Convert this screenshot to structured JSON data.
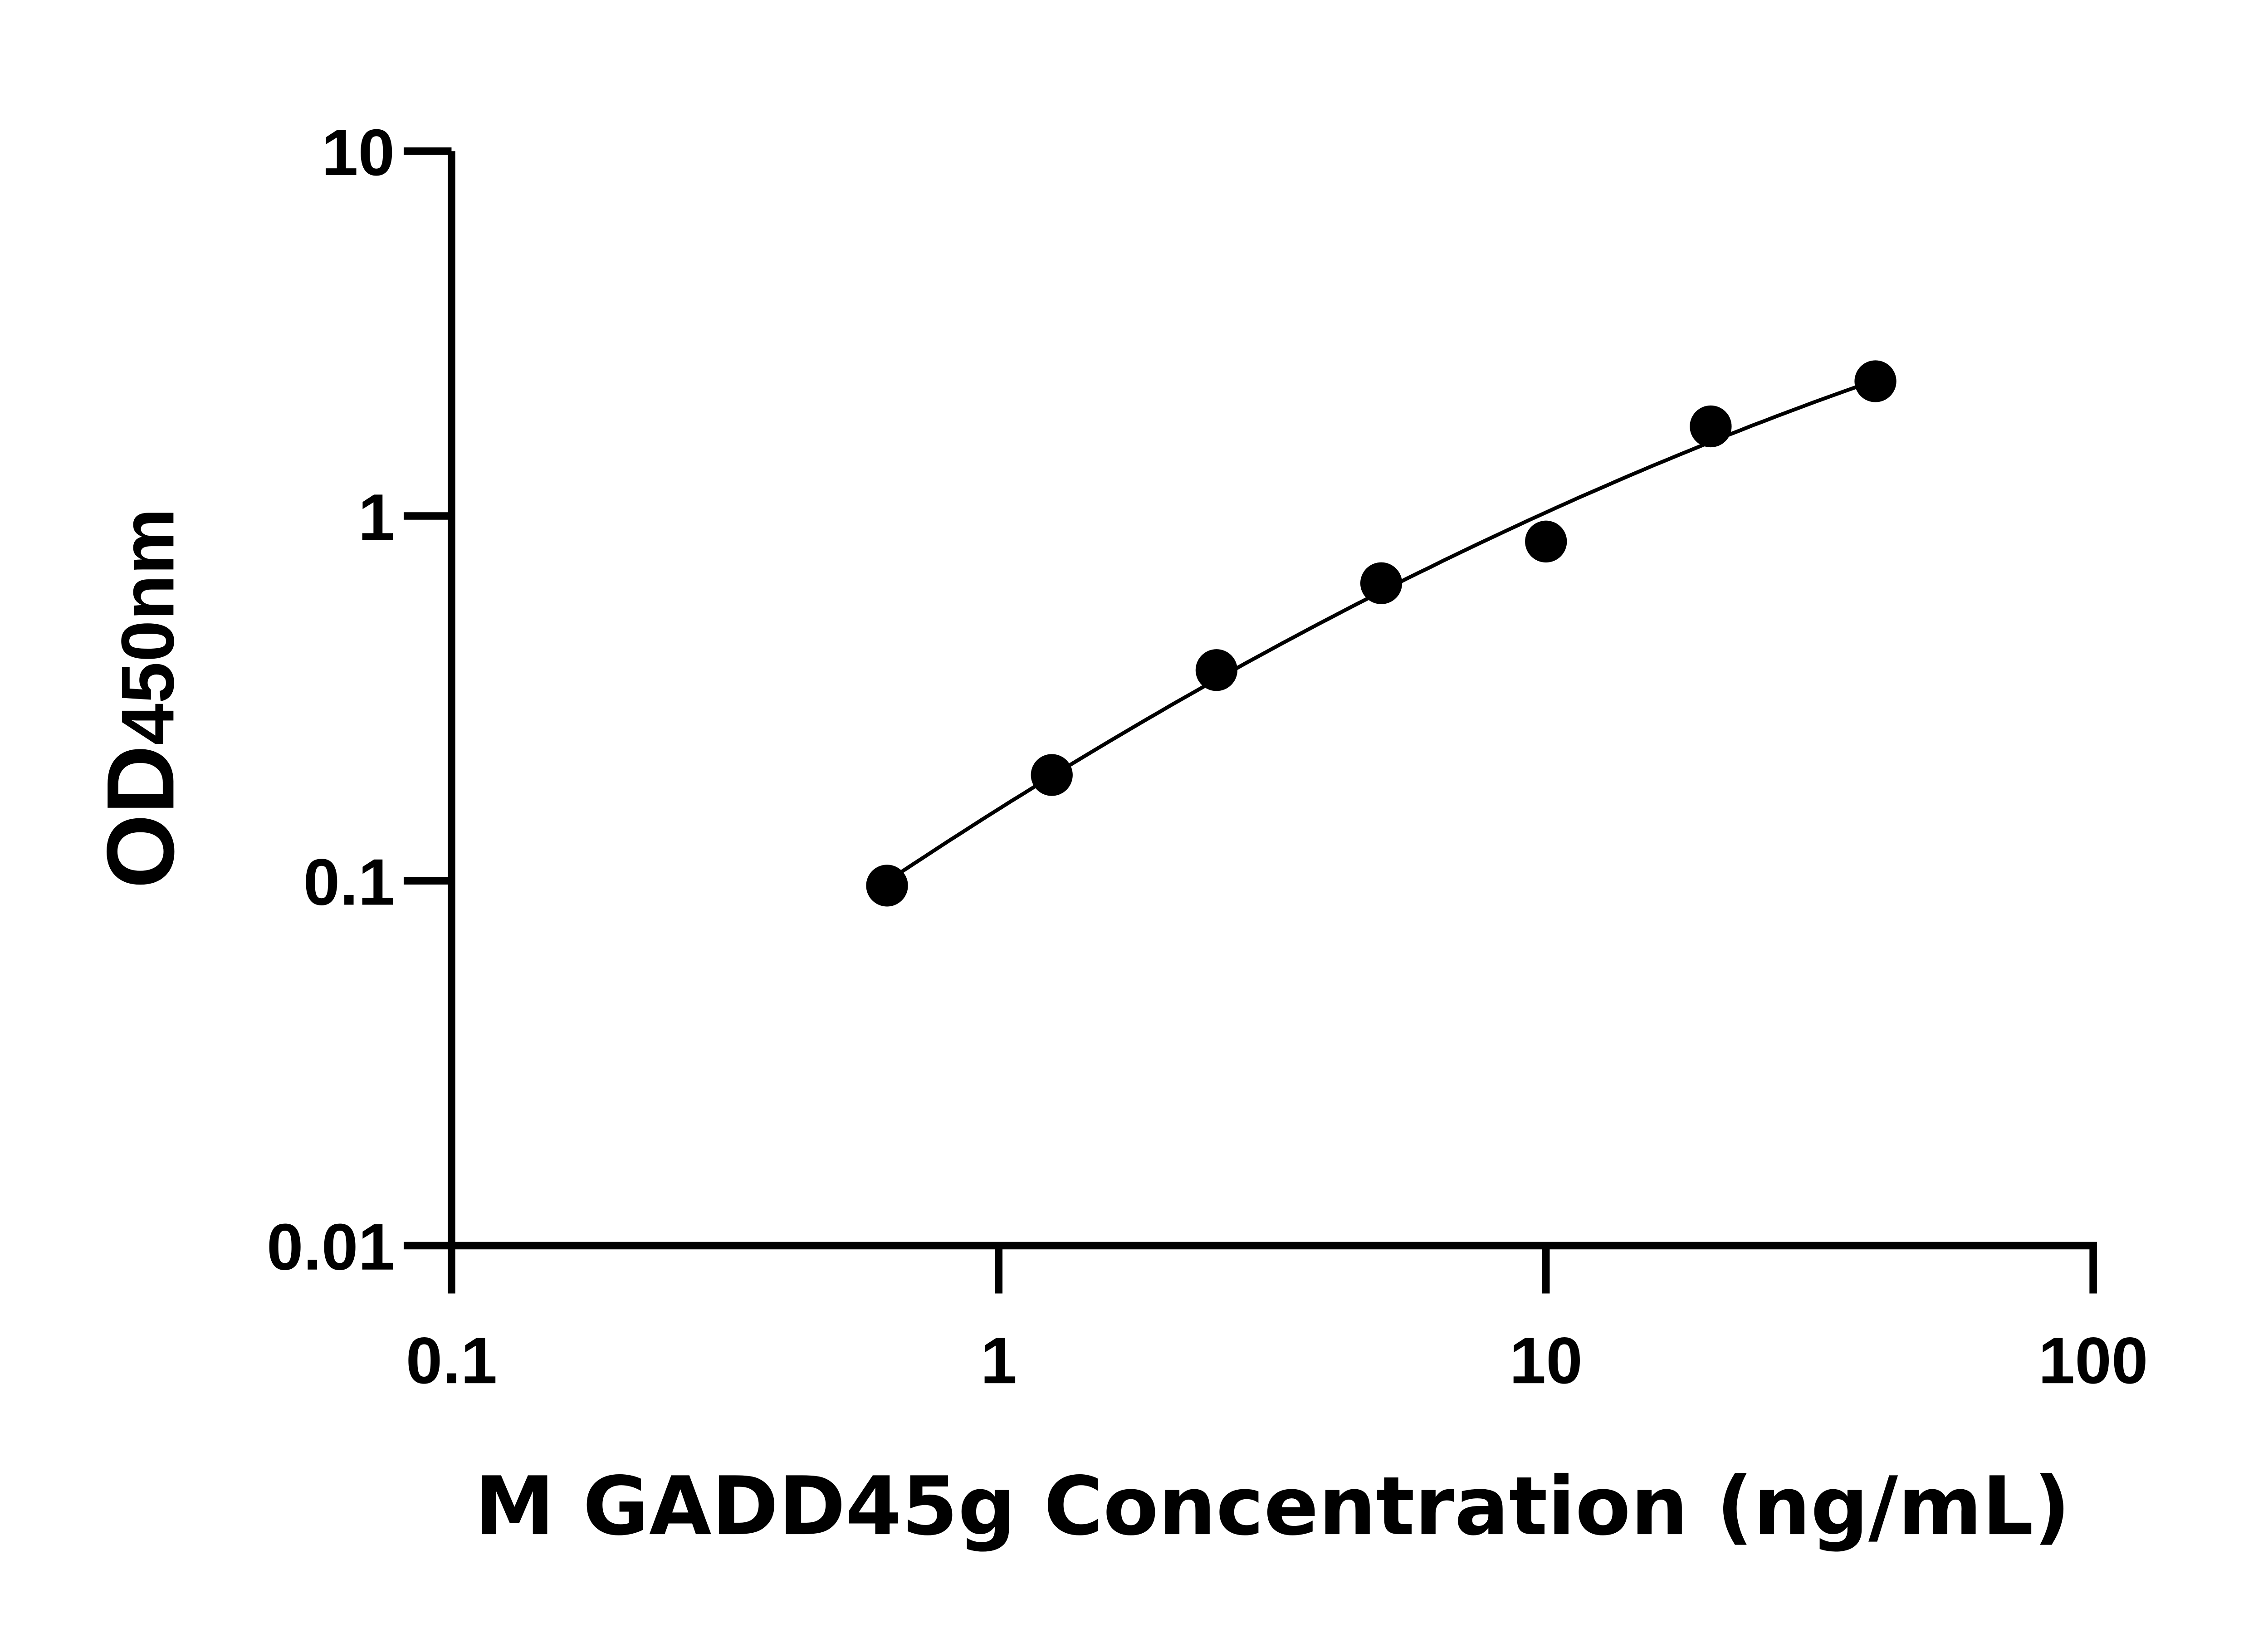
{
  "chart_data": {
    "type": "scatter",
    "title": "",
    "xlabel": "M GADD45g Concentration (ng/mL)",
    "ylabel_main": "OD",
    "ylabel_sub": "450nm",
    "xscale": "log",
    "yscale": "log",
    "xlim": [
      0.1,
      100
    ],
    "ylim": [
      0.01,
      10
    ],
    "xticks": [
      "0.1",
      "1",
      "10",
      "100"
    ],
    "yticks": [
      "0.01",
      "0.1",
      "1",
      "10"
    ],
    "grid": false,
    "legend": "none",
    "fit_curve": true,
    "colors": {
      "points": "#000000",
      "line": "#000000"
    },
    "x": [
      0.625,
      1.25,
      2.5,
      5,
      10,
      20,
      40
    ],
    "y": [
      0.097,
      0.195,
      0.378,
      0.654,
      0.851,
      1.76,
      2.34
    ]
  }
}
